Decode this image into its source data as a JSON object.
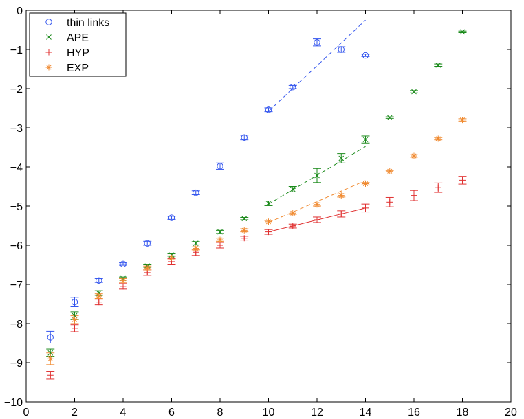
{
  "chart_data": {
    "type": "scatter",
    "title": "",
    "xlabel": "",
    "ylabel": "",
    "xlim": [
      0,
      20
    ],
    "ylim": [
      -10,
      0
    ],
    "xticks": [
      0,
      2,
      4,
      6,
      8,
      10,
      12,
      14,
      16,
      18,
      20
    ],
    "yticks": [
      -10,
      -9,
      -8,
      -7,
      -6,
      -5,
      -4,
      -3,
      -2,
      -1,
      0
    ],
    "xtick_labels": [
      "0",
      "2",
      "4",
      "6",
      "8",
      "10",
      "12",
      "14",
      "16",
      "18",
      "20"
    ],
    "ytick_labels": [
      "−10",
      "−9",
      "−8",
      "−7",
      "−6",
      "−5",
      "−4",
      "−3",
      "−2",
      "−1",
      "0"
    ],
    "grid": false,
    "legend_position": "top-left",
    "series": [
      {
        "name": "thin links",
        "marker": "circle",
        "color": "#3355ee",
        "points": [
          {
            "x": 1,
            "y": -8.35,
            "err": 0.15
          },
          {
            "x": 2,
            "y": -7.45,
            "err": 0.12
          },
          {
            "x": 3,
            "y": -6.9,
            "err": 0.05
          },
          {
            "x": 4,
            "y": -6.48,
            "err": 0.03
          },
          {
            "x": 5,
            "y": -5.95,
            "err": 0.05
          },
          {
            "x": 6,
            "y": -5.3,
            "err": 0.04
          },
          {
            "x": 7,
            "y": -4.66,
            "err": 0.05
          },
          {
            "x": 8,
            "y": -3.98,
            "err": 0.08
          },
          {
            "x": 9,
            "y": -3.25,
            "err": 0.06
          },
          {
            "x": 10,
            "y": -2.54,
            "err": 0.05
          },
          {
            "x": 11,
            "y": -1.96,
            "err": 0.04
          },
          {
            "x": 12,
            "y": -0.82,
            "err": 0.09
          },
          {
            "x": 13,
            "y": -1.0,
            "err": 0.07
          },
          {
            "x": 14,
            "y": -1.15,
            "err": 0.03
          }
        ],
        "fit_line": {
          "x": [
            10,
            14
          ],
          "y": [
            -2.58,
            -0.25
          ]
        }
      },
      {
        "name": "APE",
        "marker": "x",
        "color": "#1a8a1a",
        "points": [
          {
            "x": 1,
            "y": -8.75,
            "err": 0.1
          },
          {
            "x": 2,
            "y": -7.8,
            "err": 0.1
          },
          {
            "x": 3,
            "y": -7.22,
            "err": 0.06
          },
          {
            "x": 4,
            "y": -6.85,
            "err": 0.04
          },
          {
            "x": 5,
            "y": -6.53,
            "err": 0.03
          },
          {
            "x": 6,
            "y": -6.25,
            "err": 0.03
          },
          {
            "x": 7,
            "y": -5.95,
            "err": 0.04
          },
          {
            "x": 8,
            "y": -5.66,
            "err": 0.04
          },
          {
            "x": 9,
            "y": -5.32,
            "err": 0.03
          },
          {
            "x": 10,
            "y": -4.93,
            "err": 0.06
          },
          {
            "x": 11,
            "y": -4.57,
            "err": 0.07
          },
          {
            "x": 12,
            "y": -4.22,
            "err": 0.18
          },
          {
            "x": 13,
            "y": -3.78,
            "err": 0.12
          },
          {
            "x": 14,
            "y": -3.3,
            "err": 0.09
          },
          {
            "x": 15,
            "y": -2.74,
            "err": 0.02
          },
          {
            "x": 16,
            "y": -2.08,
            "err": 0.03
          },
          {
            "x": 17,
            "y": -1.4,
            "err": 0.03
          },
          {
            "x": 18,
            "y": -0.55,
            "err": 0.02
          }
        ],
        "fit_line": {
          "x": [
            10,
            14
          ],
          "y": [
            -4.95,
            -3.48
          ]
        }
      },
      {
        "name": "HYP",
        "marker": "plus",
        "color": "#e03030",
        "points": [
          {
            "x": 1,
            "y": -9.32,
            "err": 0.1
          },
          {
            "x": 2,
            "y": -8.12,
            "err": 0.09
          },
          {
            "x": 3,
            "y": -7.45,
            "err": 0.07
          },
          {
            "x": 4,
            "y": -7.05,
            "err": 0.07
          },
          {
            "x": 5,
            "y": -6.7,
            "err": 0.07
          },
          {
            "x": 6,
            "y": -6.42,
            "err": 0.08
          },
          {
            "x": 7,
            "y": -6.18,
            "err": 0.08
          },
          {
            "x": 8,
            "y": -6.0,
            "err": 0.07
          },
          {
            "x": 9,
            "y": -5.82,
            "err": 0.05
          },
          {
            "x": 10,
            "y": -5.66,
            "err": 0.06
          },
          {
            "x": 11,
            "y": -5.51,
            "err": 0.05
          },
          {
            "x": 12,
            "y": -5.35,
            "err": 0.07
          },
          {
            "x": 13,
            "y": -5.2,
            "err": 0.08
          },
          {
            "x": 14,
            "y": -5.05,
            "err": 0.1
          },
          {
            "x": 15,
            "y": -4.9,
            "err": 0.12
          },
          {
            "x": 16,
            "y": -4.73,
            "err": 0.13
          },
          {
            "x": 17,
            "y": -4.53,
            "err": 0.12
          },
          {
            "x": 18,
            "y": -4.34,
            "err": 0.1
          }
        ],
        "fit_line": {
          "x": [
            10,
            14
          ],
          "y": [
            -5.66,
            -5.05
          ]
        }
      },
      {
        "name": "EXP",
        "marker": "asterisk",
        "color": "#f08a30",
        "points": [
          {
            "x": 1,
            "y": -8.9,
            "err": 0.15
          },
          {
            "x": 2,
            "y": -7.9,
            "err": 0.1
          },
          {
            "x": 3,
            "y": -7.3,
            "err": 0.06
          },
          {
            "x": 4,
            "y": -6.9,
            "err": 0.05
          },
          {
            "x": 5,
            "y": -6.58,
            "err": 0.05
          },
          {
            "x": 6,
            "y": -6.32,
            "err": 0.05
          },
          {
            "x": 7,
            "y": -6.08,
            "err": 0.04
          },
          {
            "x": 8,
            "y": -5.86,
            "err": 0.04
          },
          {
            "x": 9,
            "y": -5.62,
            "err": 0.04
          },
          {
            "x": 10,
            "y": -5.4,
            "err": 0.03
          },
          {
            "x": 11,
            "y": -5.18,
            "err": 0.03
          },
          {
            "x": 12,
            "y": -4.96,
            "err": 0.04
          },
          {
            "x": 13,
            "y": -4.73,
            "err": 0.04
          },
          {
            "x": 14,
            "y": -4.43,
            "err": 0.03
          },
          {
            "x": 15,
            "y": -4.11,
            "err": 0.02
          },
          {
            "x": 16,
            "y": -3.72,
            "err": 0.03
          },
          {
            "x": 17,
            "y": -3.28,
            "err": 0.03
          },
          {
            "x": 18,
            "y": -2.8,
            "err": 0.03
          }
        ],
        "fit_line": {
          "x": [
            10,
            14
          ],
          "y": [
            -5.42,
            -4.35
          ]
        }
      }
    ]
  }
}
